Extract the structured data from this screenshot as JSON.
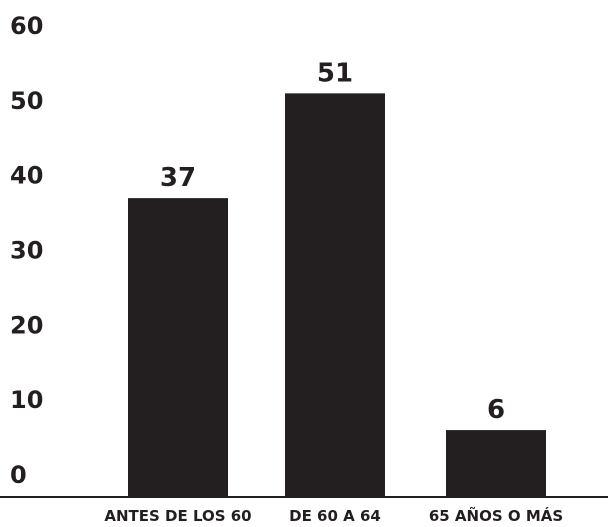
{
  "chart_data": {
    "type": "bar",
    "title": "",
    "xlabel": "",
    "ylabel": "",
    "categories": [
      "ANTES DE LOS 60",
      "DE 60 A 64",
      "65 AÑOS O MÁS"
    ],
    "values": [
      37,
      51,
      6
    ],
    "data_labels": [
      "37",
      "51",
      "6"
    ],
    "y_ticks": [
      0,
      10,
      20,
      30,
      40,
      50,
      60
    ],
    "y_tick_labels": [
      "0",
      "10",
      "20",
      "30",
      "40",
      "50",
      "60"
    ],
    "ylim": [
      0,
      60
    ],
    "grid": false,
    "legend": "none",
    "bar_color": "#231f20",
    "text_color": "#231f20",
    "axis_color": "#231f20",
    "background": "#ffffff"
  }
}
